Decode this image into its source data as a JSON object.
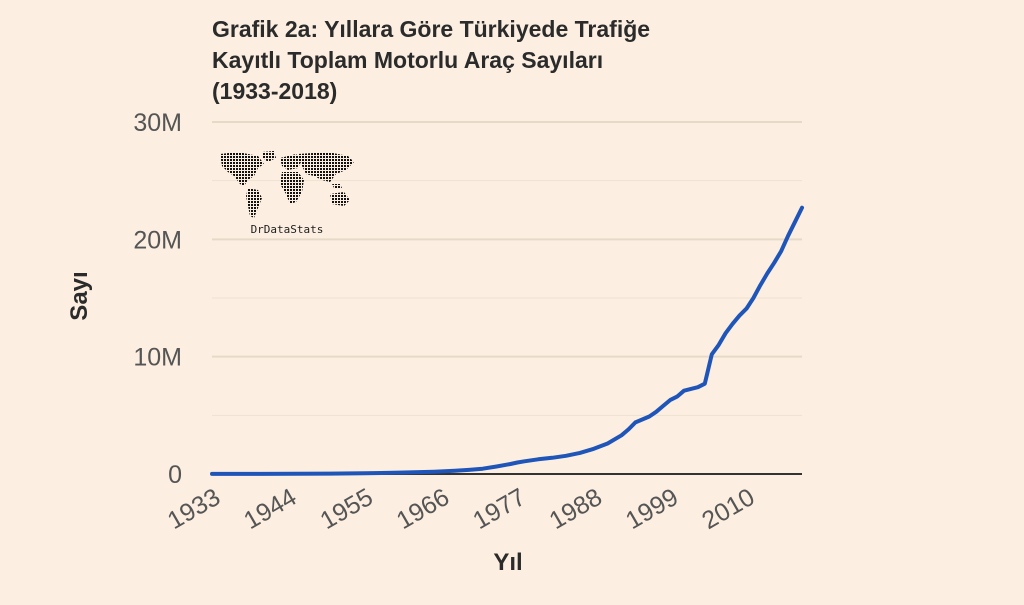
{
  "chart_data": {
    "type": "line",
    "title": "Grafik 2a: Yıllara Göre Türkiyede Trafiğe Kayıtlı Toplam Motorlu Araç Sayıları (1933-2018)",
    "title_lines": [
      "Grafik 2a: Yıllara Göre Türkiyede Trafiğe",
      "Kayıtlı Toplam Motorlu Araç Sayıları",
      "(1933-2018)"
    ],
    "xlabel": "Yıl",
    "ylabel": "Sayı",
    "xlim": [
      1933,
      2018
    ],
    "ylim": [
      0,
      30000000
    ],
    "x_ticks": [
      1933,
      1944,
      1955,
      1966,
      1977,
      1988,
      1999,
      2010
    ],
    "x_tick_labels": [
      "1933",
      "1944",
      "1955",
      "1966",
      "1977",
      "1988",
      "1999",
      "2010"
    ],
    "y_ticks": [
      0,
      10000000,
      20000000,
      30000000
    ],
    "y_tick_labels": [
      "0",
      "10M",
      "20M",
      "30M"
    ],
    "minor_gridlines": [
      5000000,
      15000000,
      25000000
    ],
    "grid": true,
    "legend": "none",
    "series": [
      {
        "color": "#1f55b8",
        "points": [
          [
            1933,
            5000
          ],
          [
            1940,
            10000
          ],
          [
            1945,
            15000
          ],
          [
            1950,
            30000
          ],
          [
            1955,
            60000
          ],
          [
            1960,
            120000
          ],
          [
            1965,
            200000
          ],
          [
            1968,
            270000
          ],
          [
            1970,
            350000
          ],
          [
            1972,
            450000
          ],
          [
            1974,
            640000
          ],
          [
            1976,
            850000
          ],
          [
            1977,
            980000
          ],
          [
            1978,
            1080000
          ],
          [
            1980,
            1250000
          ],
          [
            1982,
            1380000
          ],
          [
            1984,
            1550000
          ],
          [
            1986,
            1800000
          ],
          [
            1988,
            2150000
          ],
          [
            1990,
            2600000
          ],
          [
            1992,
            3300000
          ],
          [
            1993,
            3800000
          ],
          [
            1994,
            4400000
          ],
          [
            1996,
            4900000
          ],
          [
            1997,
            5300000
          ],
          [
            1998,
            5800000
          ],
          [
            1999,
            6300000
          ],
          [
            2000,
            6600000
          ],
          [
            2001,
            7100000
          ],
          [
            2002,
            7250000
          ],
          [
            2003,
            7400000
          ],
          [
            2004,
            7700000
          ],
          [
            2005,
            10200000
          ],
          [
            2006,
            11000000
          ],
          [
            2007,
            12000000
          ],
          [
            2008,
            12800000
          ],
          [
            2009,
            13500000
          ],
          [
            2010,
            14100000
          ],
          [
            2011,
            15000000
          ],
          [
            2012,
            16100000
          ],
          [
            2013,
            17100000
          ],
          [
            2014,
            18000000
          ],
          [
            2015,
            19000000
          ],
          [
            2016,
            20300000
          ],
          [
            2017,
            21500000
          ],
          [
            2018,
            22700000
          ]
        ]
      }
    ]
  },
  "watermark": {
    "text": "DrDataStats",
    "icon": "world-map-icon"
  },
  "colors": {
    "background": "#fcefe1",
    "line": "#1f55b8",
    "grid": "#e6d9c8",
    "baseline": "#333333",
    "tick_label": "#555555",
    "title": "#2b2b2b"
  }
}
